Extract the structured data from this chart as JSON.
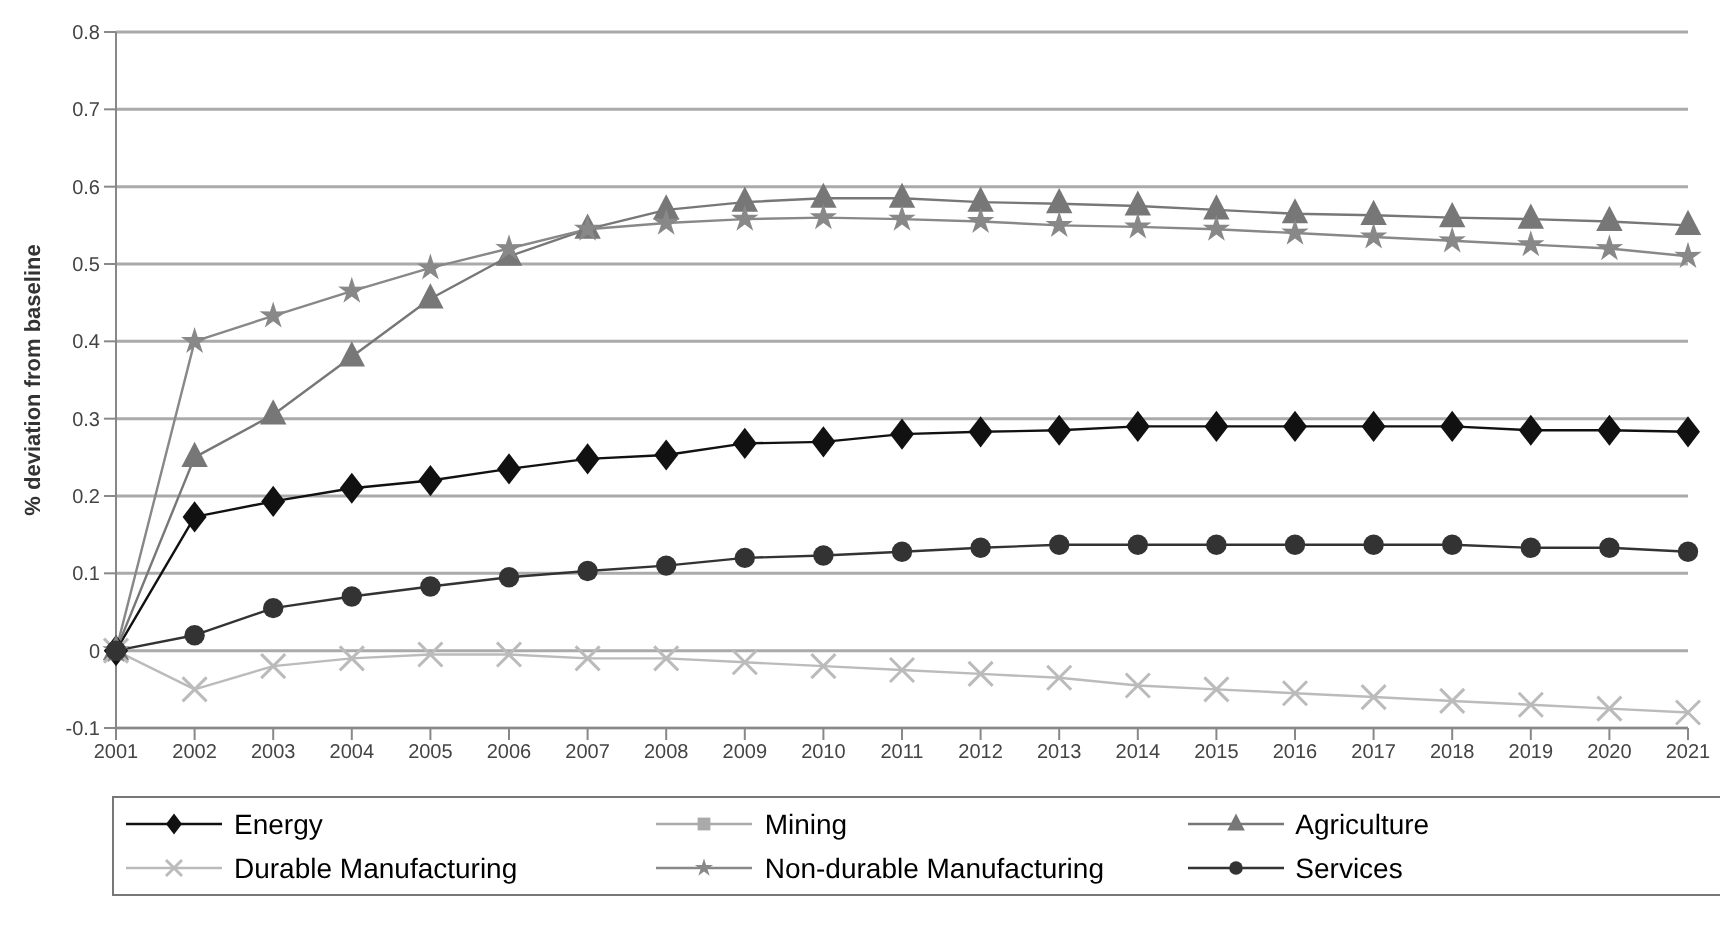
{
  "chart_data": {
    "type": "line",
    "ylabel": "% deviation from baseline",
    "categories": [
      "2001",
      "2002",
      "2003",
      "2004",
      "2005",
      "2006",
      "2007",
      "2008",
      "2009",
      "2010",
      "2011",
      "2012",
      "2013",
      "2014",
      "2015",
      "2016",
      "2017",
      "2018",
      "2019",
      "2020",
      "2021"
    ],
    "series": [
      {
        "name": "Energy",
        "color": "#111111",
        "marker": "diamond",
        "values": [
          0,
          0.173,
          0.193,
          0.21,
          0.22,
          0.235,
          0.248,
          0.253,
          0.268,
          0.27,
          0.28,
          0.283,
          0.285,
          0.29,
          0.29,
          0.29,
          0.29,
          0.29,
          0.285,
          0.285,
          0.283
        ]
      },
      {
        "name": "Mining",
        "color": "#aaaaaa",
        "marker": "square",
        "values": [
          null,
          null,
          null,
          null,
          null,
          null,
          null,
          null,
          null,
          null,
          null,
          null,
          null,
          null,
          null,
          null,
          null,
          null,
          null,
          null,
          null
        ]
      },
      {
        "name": "Agriculture",
        "color": "#777777",
        "marker": "triangle",
        "values": [
          0,
          0.25,
          0.305,
          0.38,
          0.455,
          0.51,
          0.545,
          0.57,
          0.58,
          0.585,
          0.585,
          0.58,
          0.578,
          0.575,
          0.57,
          0.565,
          0.563,
          0.56,
          0.558,
          0.555,
          0.55
        ]
      },
      {
        "name": "Durable Manufacturing",
        "color": "#bbbbbb",
        "marker": "cross",
        "values": [
          0,
          -0.05,
          -0.02,
          -0.01,
          -0.005,
          -0.005,
          -0.01,
          -0.01,
          -0.015,
          -0.02,
          -0.025,
          -0.03,
          -0.035,
          -0.045,
          -0.05,
          -0.055,
          -0.06,
          -0.065,
          -0.07,
          -0.075,
          -0.08
        ]
      },
      {
        "name": "Non-durable Manufacturing",
        "color": "#888888",
        "marker": "star",
        "values": [
          0,
          0.4,
          0.433,
          0.465,
          0.495,
          0.52,
          0.545,
          0.553,
          0.558,
          0.56,
          0.558,
          0.555,
          0.55,
          0.548,
          0.545,
          0.54,
          0.535,
          0.53,
          0.525,
          0.52,
          0.51
        ]
      },
      {
        "name": "Services",
        "color": "#333333",
        "marker": "circle",
        "values": [
          0,
          0.02,
          0.055,
          0.07,
          0.083,
          0.095,
          0.103,
          0.11,
          0.12,
          0.123,
          0.128,
          0.133,
          0.137,
          0.137,
          0.137,
          0.137,
          0.137,
          0.137,
          0.133,
          0.133,
          0.128
        ]
      }
    ],
    "ylim": [
      -0.1,
      0.8
    ],
    "yticks": [
      -0.1,
      0,
      0.1,
      0.2,
      0.3,
      0.4,
      0.5,
      0.6,
      0.7,
      0.8
    ],
    "grid": "y",
    "legend": "bottom"
  }
}
